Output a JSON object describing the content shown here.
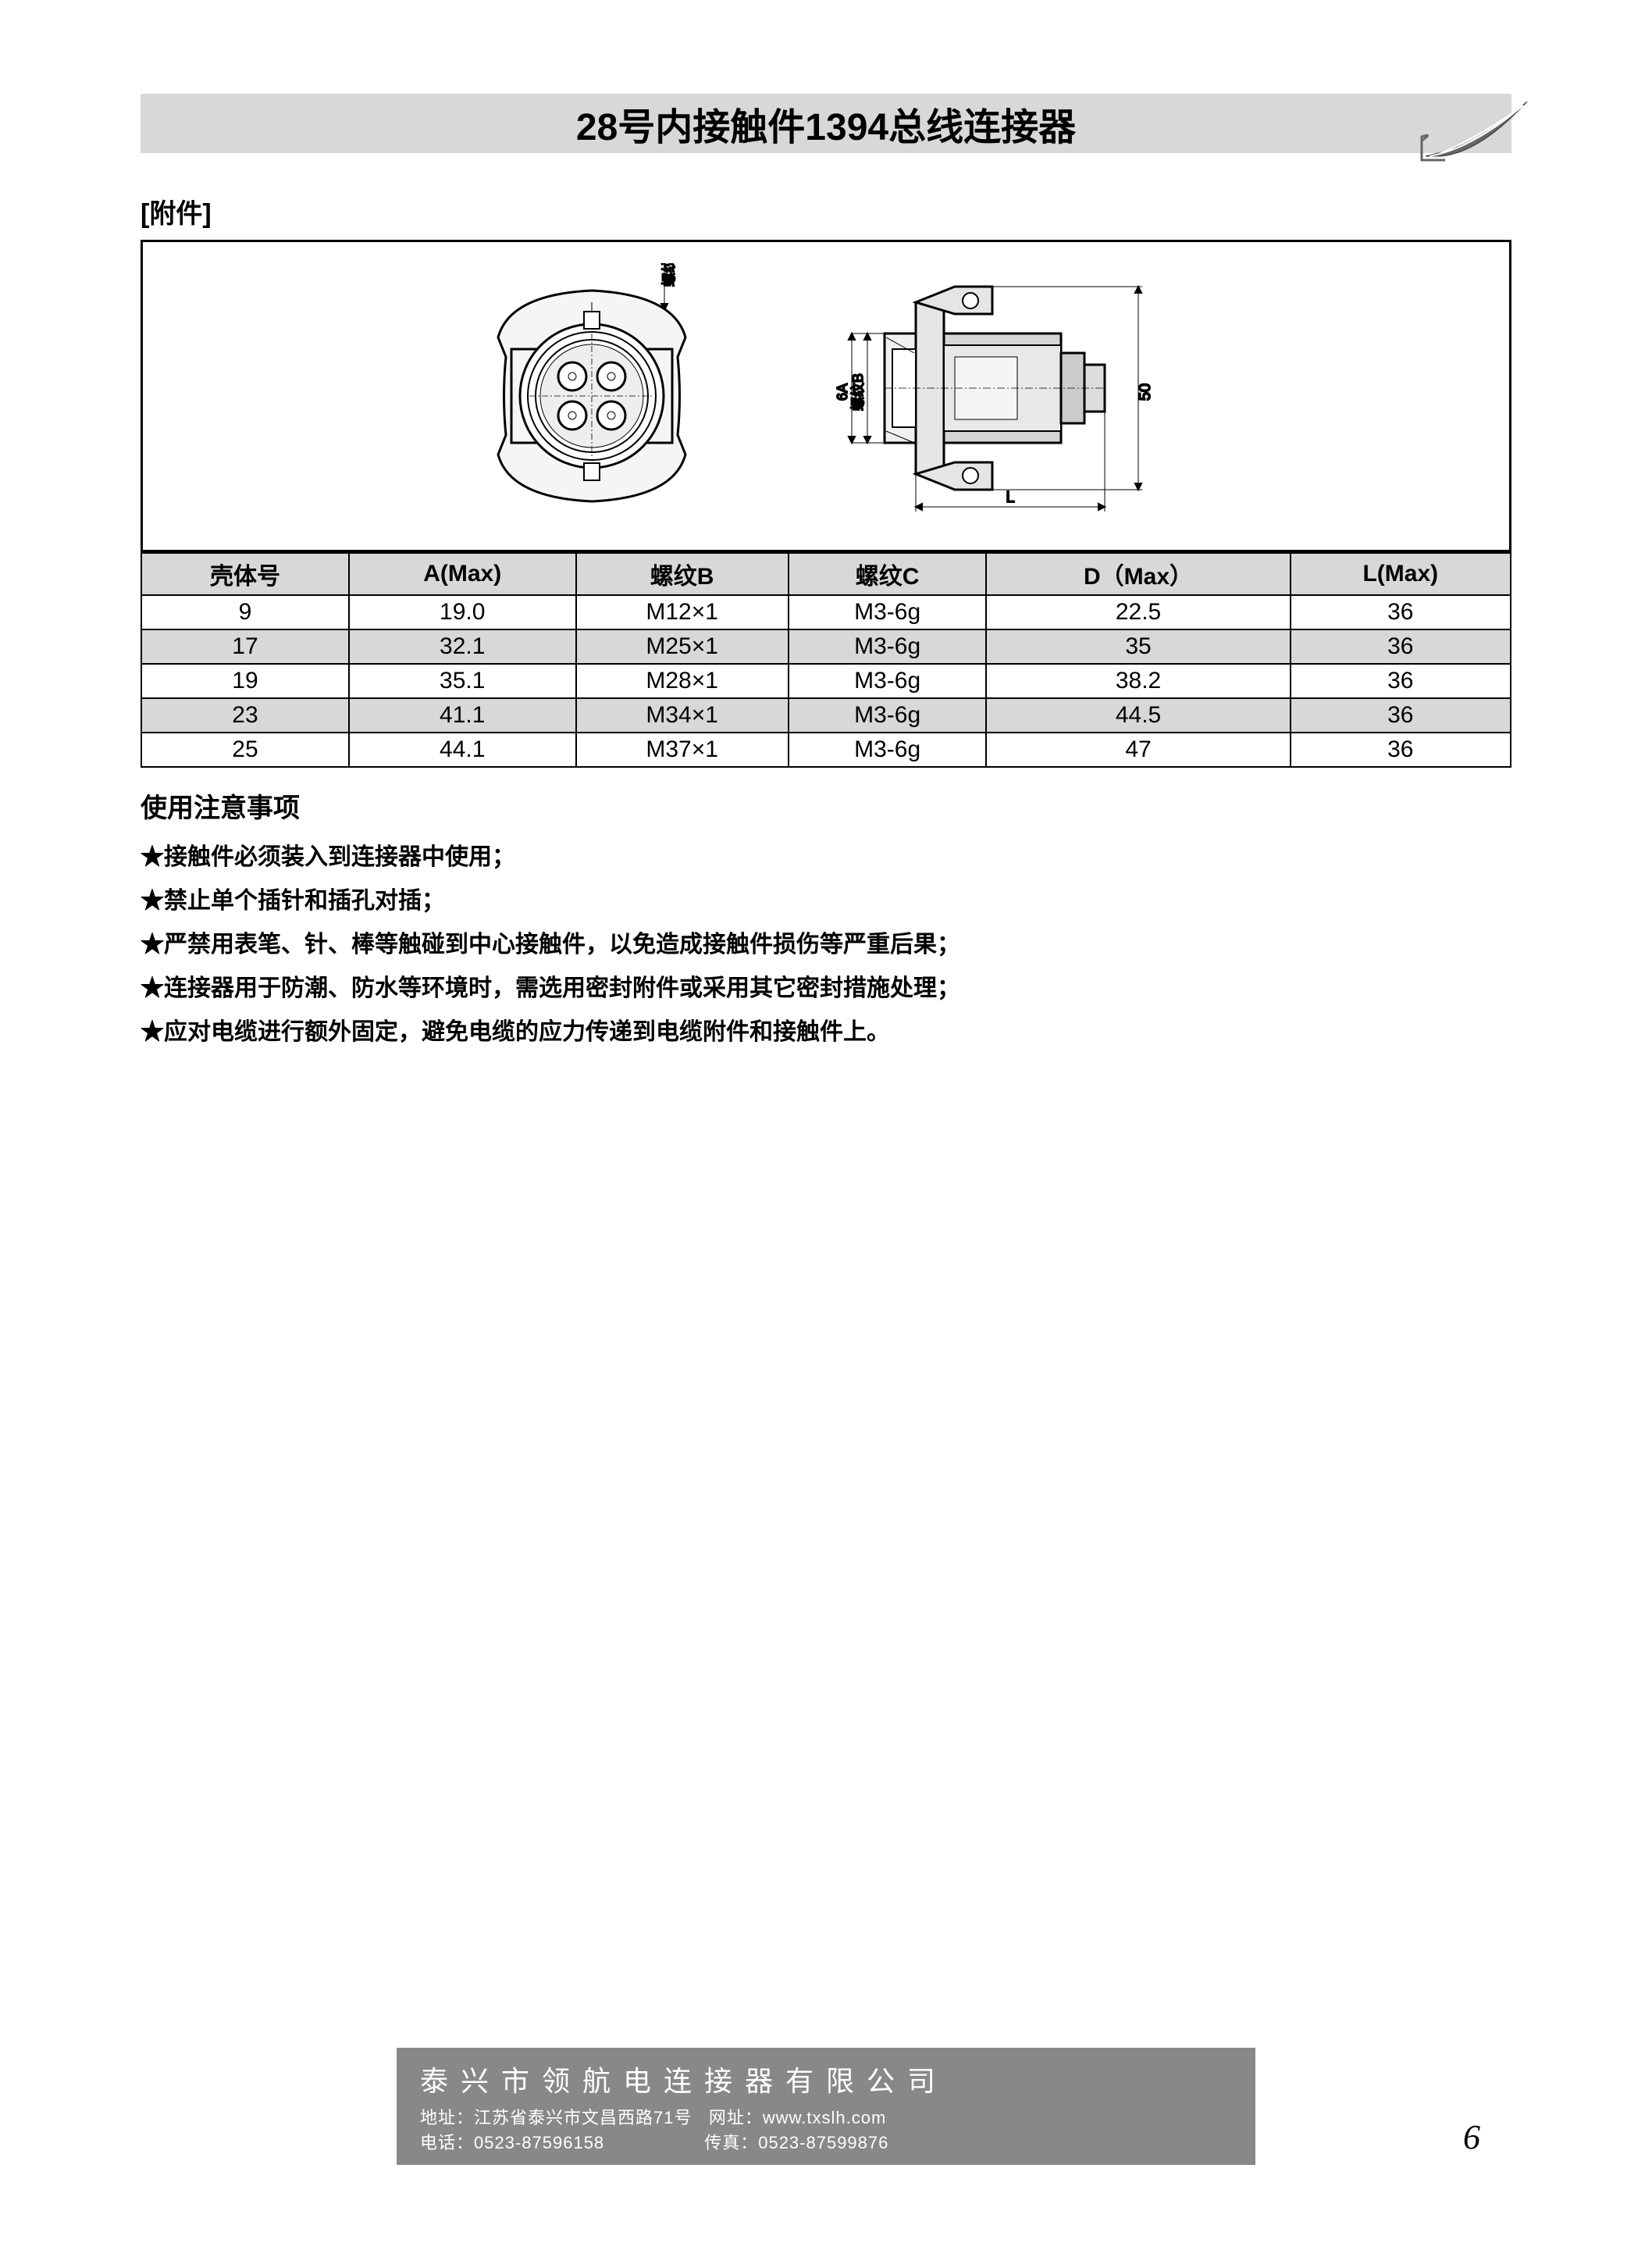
{
  "header": {
    "title": "28号内接触件1394总线连接器"
  },
  "section_label": "[附件]",
  "diagram_labels": {
    "front_thread": "螺纹C",
    "side_thread": "螺纹B",
    "side_dim_v": "6A",
    "side_dim_r": "50",
    "side_dim_b": "L"
  },
  "table": {
    "columns": [
      "壳体号",
      "A(Max)",
      "螺纹B",
      "螺纹C",
      "D（Max）",
      "L(Max)"
    ],
    "rows": [
      [
        "9",
        "19.0",
        "M12×1",
        "M3-6g",
        "22.5",
        "36"
      ],
      [
        "17",
        "32.1",
        "M25×1",
        "M3-6g",
        "35",
        "36"
      ],
      [
        "19",
        "35.1",
        "M28×1",
        "M3-6g",
        "38.2",
        "36"
      ],
      [
        "23",
        "41.1",
        "M34×1",
        "M3-6g",
        "44.5",
        "36"
      ],
      [
        "25",
        "44.1",
        "M37×1",
        "M3-6g",
        "47",
        "36"
      ]
    ],
    "shaded_rows": [
      1,
      3
    ]
  },
  "notes": {
    "title": "使用注意事项",
    "items": [
      "★接触件必须装入到连接器中使用；",
      "★禁止单个插针和插孔对插；",
      "★严禁用表笔、针、棒等触碰到中心接触件，以免造成接触件损伤等严重后果；",
      "★连接器用于防潮、防水等环境时，需选用密封附件或采用其它密封措施处理；",
      "★应对电缆进行额外固定，避免电缆的应力传递到电缆附件和接触件上。"
    ]
  },
  "footer": {
    "company": "泰兴市领航电连接器有限公司",
    "address_label": "地址：",
    "address": "江苏省泰兴市文昌西路71号",
    "web_label": "网址：",
    "web": "www.txslh.com",
    "phone_label": "电话：",
    "phone": "0523-87596158",
    "fax_label": "传真：",
    "fax": "0523-87599876"
  },
  "page_number": "6",
  "colors": {
    "header_bg": "#d8d8d8",
    "footer_bg": "#888888",
    "border": "#000000"
  }
}
